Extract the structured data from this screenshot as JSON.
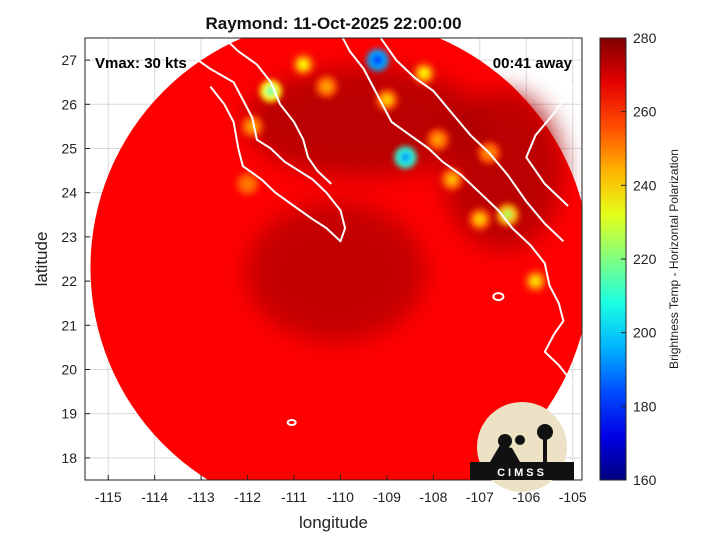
{
  "title": "Raymond: 11-Oct-2025 22:00:00",
  "annotations": {
    "vmax": "Vmax: 30 kts",
    "time_away": "00:41 away"
  },
  "axes": {
    "xlabel": "longitude",
    "ylabel": "latitude",
    "xlim": [
      -115.5,
      -104.8
    ],
    "ylim": [
      17.5,
      27.5
    ],
    "xticks": [
      -115,
      -114,
      -113,
      -112,
      -111,
      -110,
      -109,
      -108,
      -107,
      -106,
      -105
    ],
    "yticks": [
      18,
      19,
      20,
      21,
      22,
      23,
      24,
      25,
      26,
      27
    ],
    "grid": true
  },
  "colorbar": {
    "label": "Brightness Temp - Horizontal Polarization",
    "min": 160,
    "max": 280,
    "ticks": [
      160,
      180,
      200,
      220,
      240,
      260,
      280
    ],
    "colormap": "jet"
  },
  "swath": {
    "center_lon": -110.0,
    "center_lat": 22.3,
    "background_temp": 265,
    "deep_temp": 275
  },
  "hot_spots": [
    {
      "lon": -109.2,
      "lat": 27.0,
      "temp": 175
    },
    {
      "lon": -108.6,
      "lat": 24.8,
      "temp": 190
    },
    {
      "lon": -111.5,
      "lat": 26.3,
      "temp": 215
    },
    {
      "lon": -110.8,
      "lat": 26.9,
      "temp": 235
    },
    {
      "lon": -108.2,
      "lat": 26.7,
      "temp": 235
    },
    {
      "lon": -106.4,
      "lat": 23.5,
      "temp": 225
    },
    {
      "lon": -107.0,
      "lat": 23.4,
      "temp": 240
    },
    {
      "lon": -109.0,
      "lat": 26.1,
      "temp": 240
    },
    {
      "lon": -107.6,
      "lat": 24.3,
      "temp": 242
    },
    {
      "lon": -105.8,
      "lat": 22.0,
      "temp": 238
    },
    {
      "lon": -111.9,
      "lat": 25.5,
      "temp": 245
    },
    {
      "lon": -112.0,
      "lat": 24.2,
      "temp": 250
    },
    {
      "lon": -110.3,
      "lat": 26.4,
      "temp": 245
    },
    {
      "lon": -106.8,
      "lat": 24.9,
      "temp": 248
    },
    {
      "lon": -107.9,
      "lat": 25.2,
      "temp": 246
    }
  ],
  "logo": {
    "text": "CIMSS"
  }
}
